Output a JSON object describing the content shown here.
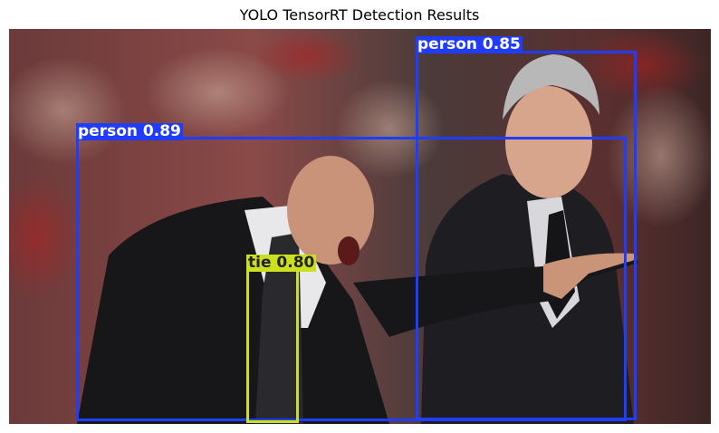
{
  "figure": {
    "title": "YOLO TensorRT Detection Results"
  },
  "detections": [
    {
      "class": "person",
      "score": "0.85",
      "text": "person 0.85",
      "color": "#1f3cff"
    },
    {
      "class": "person",
      "score": "0.89",
      "text": "person 0.89",
      "color": "#1f3cff"
    },
    {
      "class": "tie",
      "score": "0.80",
      "text": "tie 0.80",
      "color": "#cbe11f"
    }
  ],
  "colors": {
    "person": "#1f3cff",
    "tie": "#cbe11f",
    "tie_text": "#222222"
  }
}
